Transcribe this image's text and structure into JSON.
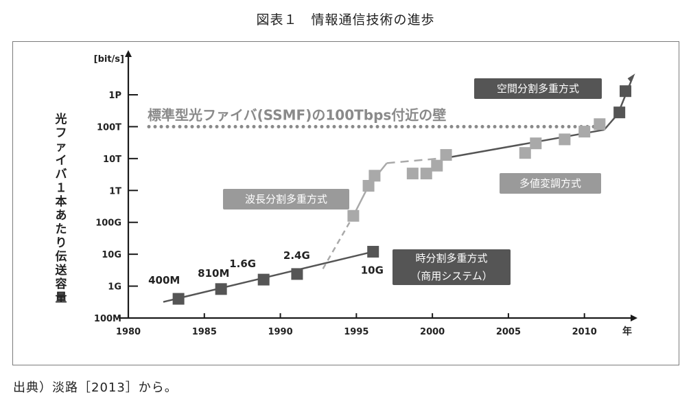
{
  "figure_title": "図表１　情報通信技術の進歩",
  "source_note": "出典）淡路［2013］から。",
  "colors": {
    "axis": "#1a1a1a",
    "series_dark": "#555555",
    "series_light": "#a9a9a9",
    "label_box_light": "#9a9a9a",
    "label_box_dark": "#555555",
    "wall_dotted": "#8a8a8a"
  },
  "chart_data": {
    "type": "scatter",
    "title": "",
    "xlabel": "年",
    "ylabel": "光ファイバ１本あたり伝送容量",
    "y_unit": "[bit/s]",
    "y_scale": "log",
    "xlim": [
      1980,
      2013
    ],
    "ylim": [
      100000000.0,
      1e+16
    ],
    "x_ticks": [
      1980,
      1985,
      1990,
      1995,
      2000,
      2005,
      2010
    ],
    "y_ticks": [
      {
        "value": 100000000.0,
        "label": "100M"
      },
      {
        "value": 1000000000.0,
        "label": "1G"
      },
      {
        "value": 10000000000.0,
        "label": "10G"
      },
      {
        "value": 100000000000.0,
        "label": "100G"
      },
      {
        "value": 1000000000000.0,
        "label": "1T"
      },
      {
        "value": 10000000000000.0,
        "label": "10T"
      },
      {
        "value": 100000000000000.0,
        "label": "100T"
      },
      {
        "value": 1000000000000000.0,
        "label": "1P"
      }
    ],
    "wall": {
      "value": 100000000000000.0,
      "label": "標準型光ファイバ(SSMF)の100Tbps付近の壁"
    },
    "series": [
      {
        "name": "時分割多重方式（商用システム）",
        "box_label_lines": [
          "時分割多重方式",
          "（商用システム）"
        ],
        "points": [
          [
            1983.3,
            400000000.0
          ],
          [
            1986.1,
            810000000.0
          ],
          [
            1988.9,
            1600000000.0
          ],
          [
            1991.1,
            2400000000.0
          ],
          [
            1996.1,
            12000000000.0
          ]
        ],
        "point_labels": [
          "400M",
          "810M",
          "1.6G",
          "2.4G",
          "10G"
        ],
        "trend": [
          [
            1982.3,
            320000000.0
          ],
          [
            1996.1,
            12000000000.0
          ]
        ]
      },
      {
        "name": "波長分割多重方式",
        "box_label_lines": [
          "波長分割多重方式"
        ],
        "points": [
          [
            1994.8,
            160000000000.0
          ],
          [
            1995.8,
            1400000000000.0
          ],
          [
            1996.2,
            2900000000000.0
          ],
          [
            1998.7,
            3400000000000.0
          ],
          [
            1999.6,
            3400000000000.0
          ],
          [
            2000.3,
            6000000000000.0
          ],
          [
            2000.9,
            13000000000000.0
          ]
        ],
        "trend_dashed": [
          [
            1992.8,
            3500000000.0
          ],
          [
            1994.8,
            160000000000.0
          ],
          [
            1995.8,
            1400000000000.0
          ],
          [
            1997.0,
            7200000000000.0
          ],
          [
            2000.9,
            10500000000000.0
          ]
        ]
      },
      {
        "name": "多値変調方式",
        "box_label_lines": [
          "多値変調方式"
        ],
        "points": [
          [
            2006.1,
            15000000000000.0
          ],
          [
            2006.8,
            30000000000000.0
          ],
          [
            2008.7,
            40000000000000.0
          ],
          [
            2010.0,
            70000000000000.0
          ],
          [
            2011.0,
            120000000000000.0
          ]
        ],
        "trend": [
          [
            2000.9,
            10500000000000.0
          ],
          [
            2011.3,
            80000000000000.0
          ]
        ]
      },
      {
        "name": "空間分割多重方式",
        "box_label_lines": [
          "空間分割多重方式"
        ],
        "points": [
          [
            2012.3,
            280000000000000.0
          ],
          [
            2012.7,
            1300000000000000.0
          ]
        ],
        "trend": [
          [
            2011.3,
            80000000000000.0
          ],
          [
            2012.2,
            250000000000000.0
          ],
          [
            2013.2,
            3800000000000000.0
          ]
        ]
      }
    ]
  }
}
